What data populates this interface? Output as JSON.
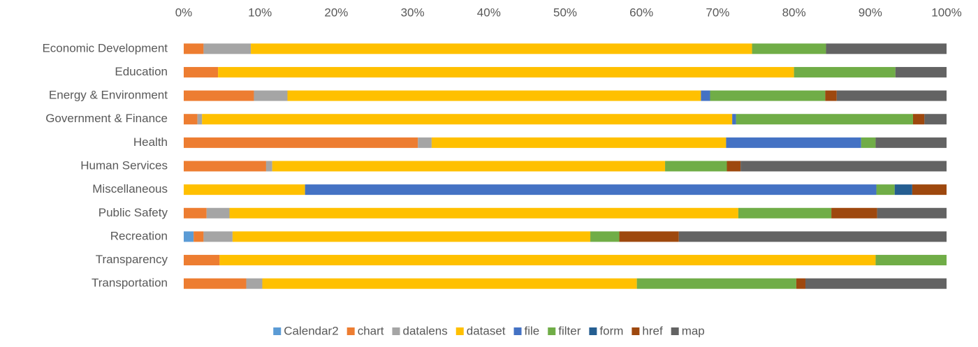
{
  "chart_data": {
    "type": "stacked_bar_horizontal",
    "categories": [
      "Economic Development",
      "Education",
      "Energy & Environment",
      "Government & Finance",
      "Health",
      "Human Services",
      "Miscellaneous",
      "Public Safety",
      "Recreation",
      "Transparency",
      "Transportation"
    ],
    "series": [
      {
        "name": "Calendar2",
        "color": "#5b9bd5",
        "values": [
          0,
          0,
          0,
          0,
          0,
          0,
          0,
          0,
          1.3,
          0,
          0
        ]
      },
      {
        "name": "chart",
        "color": "#ed7d31",
        "values": [
          2.6,
          4.5,
          9.2,
          1.8,
          30.7,
          10.8,
          0,
          3.0,
          1.3,
          4.7,
          8.2
        ]
      },
      {
        "name": "datalens",
        "color": "#a5a5a5",
        "values": [
          6.2,
          0,
          4.4,
          0.6,
          1.8,
          0.8,
          0,
          3.0,
          3.8,
          0,
          2.1
        ]
      },
      {
        "name": "dataset",
        "color": "#ffc000",
        "values": [
          65.7,
          75.5,
          54.2,
          69.5,
          38.6,
          51.5,
          15.9,
          66.7,
          46.9,
          86.0,
          49.1
        ]
      },
      {
        "name": "file",
        "color": "#4472c4",
        "values": [
          0,
          0,
          1.2,
          0.5,
          17.7,
          0,
          74.9,
          0,
          0,
          0,
          0
        ]
      },
      {
        "name": "filter",
        "color": "#70ad47",
        "values": [
          9.7,
          13.3,
          15.1,
          23.2,
          1.9,
          8.1,
          2.4,
          12.2,
          3.8,
          9.3,
          20.9
        ]
      },
      {
        "name": "form",
        "color": "#255e91",
        "values": [
          0,
          0,
          0,
          0,
          0,
          0,
          2.3,
          0,
          0,
          0,
          0
        ]
      },
      {
        "name": "href",
        "color": "#9e480e",
        "values": [
          0,
          0,
          1.5,
          1.5,
          0,
          1.8,
          4.5,
          6.0,
          7.8,
          0,
          1.2
        ]
      },
      {
        "name": "map",
        "color": "#636363",
        "values": [
          15.8,
          6.7,
          14.4,
          2.9,
          9.3,
          27.0,
          0,
          9.1,
          35.1,
          0,
          18.5
        ]
      }
    ],
    "xlim": [
      0,
      100
    ],
    "xticks": [
      {
        "value": 0,
        "label": "0%"
      },
      {
        "value": 10,
        "label": "10%"
      },
      {
        "value": 20,
        "label": "20%"
      },
      {
        "value": 30,
        "label": "30%"
      },
      {
        "value": 40,
        "label": "40%"
      },
      {
        "value": 50,
        "label": "50%"
      },
      {
        "value": 60,
        "label": "60%"
      },
      {
        "value": 70,
        "label": "70%"
      },
      {
        "value": 80,
        "label": "80%"
      },
      {
        "value": 90,
        "label": "90%"
      },
      {
        "value": 100,
        "label": "100%"
      }
    ],
    "legend": "bottom"
  }
}
